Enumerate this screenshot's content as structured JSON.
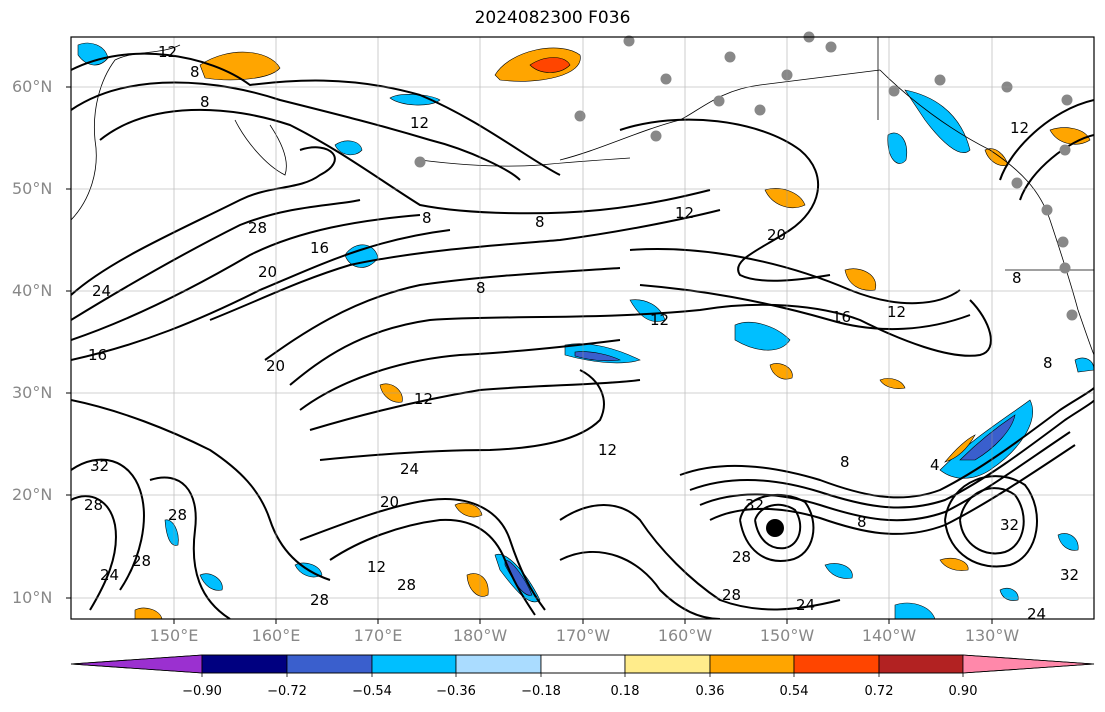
{
  "title": "2024082300 F036",
  "lat_labels": [
    "60°N",
    "50°N",
    "40°N",
    "30°N",
    "20°N",
    "10°N"
  ],
  "lon_labels": [
    "150°E",
    "160°E",
    "170°E",
    "180°W",
    "170°W",
    "160°W",
    "150°W",
    "140°W",
    "130°W"
  ],
  "contour_labels": [
    "12",
    "8",
    "8",
    "12",
    "28",
    "16",
    "20",
    "24",
    "16",
    "8",
    "8",
    "12",
    "20",
    "16",
    "12",
    "8",
    "8",
    "20",
    "12",
    "24",
    "20",
    "12",
    "8",
    "32",
    "28",
    "28",
    "24",
    "28",
    "12",
    "28",
    "28",
    "32",
    "28",
    "24",
    "8",
    "32",
    "32",
    "28",
    "24",
    "8",
    "12",
    "4",
    "12"
  ],
  "colorbar": {
    "tick_labels": [
      "−0.90",
      "−0.72",
      "−0.54",
      "−0.36",
      "−0.18",
      "0.18",
      "0.36",
      "0.54",
      "0.72",
      "0.90"
    ],
    "colors": [
      "#9b30d0",
      "#000080",
      "#3a5fcd",
      "#00bfff",
      "#aadcff",
      "#ffffff",
      "#ffec8b",
      "#ffa500",
      "#ff4500",
      "#b22222",
      "#ff88aa"
    ]
  }
}
